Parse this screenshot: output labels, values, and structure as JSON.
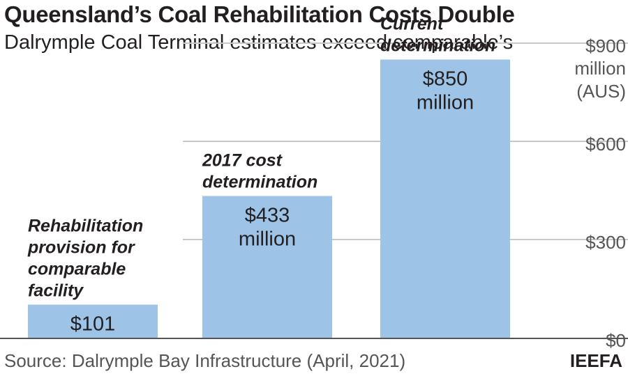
{
  "header": {
    "title": "Queensland’s Coal Rehabilitation Costs Double",
    "subtitle": "Dalrymple Coal Terminal estimates exceed comparable’s"
  },
  "footer": {
    "source": "Source: Dalrymple Bay Infrastructure (April, 2021)",
    "brand": "IEEFA"
  },
  "colors": {
    "bar": "#9dc3e6",
    "gridline": "#c8c8c8",
    "text": "#231f20",
    "axis_text": "#555555"
  },
  "chart_data": {
    "type": "bar",
    "title": "Queensland’s Coal Rehabilitation Costs Double",
    "subtitle": "Dalrymple Coal Terminal estimates exceed comparable’s",
    "categories": [
      [
        "Rehabilitation",
        "provision for",
        "comparable",
        "facility"
      ],
      [
        "2017 cost",
        "determination"
      ],
      [
        "Current",
        "determination"
      ]
    ],
    "values": [
      101,
      433,
      850
    ],
    "value_labels": [
      [
        "$101"
      ],
      [
        "$433",
        "million"
      ],
      [
        "$850",
        "million"
      ]
    ],
    "ylim": [
      0,
      900
    ],
    "y_ticks": [
      0,
      300,
      600,
      900
    ],
    "y_tick_labels": [
      "$0",
      "$300",
      "$600",
      "$900"
    ],
    "y_unit_label": [
      "million",
      "(AUS)"
    ],
    "y_axis_side": "right",
    "grid": true,
    "legend": "none"
  }
}
